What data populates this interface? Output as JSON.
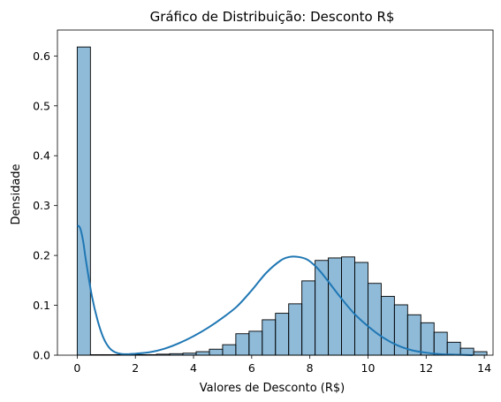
{
  "chart_data": {
    "type": "bar",
    "title": "Gráfico de Distribuição: Desconto R$",
    "xlabel": "Valores de Desconto (R$)",
    "ylabel": "Densidade",
    "xlim": [
      -0.68,
      14.3
    ],
    "ylim": [
      0,
      0.652
    ],
    "xticks": [
      "0",
      "2",
      "4",
      "6",
      "8",
      "10",
      "12",
      "14"
    ],
    "yticks": [
      "0.0",
      "0.1",
      "0.2",
      "0.3",
      "0.4",
      "0.5",
      "0.6"
    ],
    "bin_width": 0.4545,
    "bin_start": 0.0,
    "series": [
      {
        "type": "histogram",
        "color": "#1f77b4",
        "values": [
          0.618,
          0.001,
          0.001,
          0.001,
          0.001,
          0.001,
          0.002,
          0.003,
          0.004,
          0.007,
          0.012,
          0.021,
          0.043,
          0.048,
          0.071,
          0.084,
          0.103,
          0.149,
          0.19,
          0.195,
          0.197,
          0.186,
          0.144,
          0.118,
          0.101,
          0.081,
          0.065,
          0.046,
          0.026,
          0.014,
          0.007
        ]
      },
      {
        "type": "kde",
        "color": "#1f77b4",
        "x": [
          0.0,
          0.1,
          0.2,
          0.3,
          0.5,
          0.7,
          0.9,
          1.1,
          1.3,
          1.6,
          2.0,
          2.5,
          3.0,
          3.5,
          4.0,
          4.5,
          5.0,
          5.5,
          6.0,
          6.5,
          7.0,
          7.3,
          7.6,
          7.9,
          8.2,
          8.5,
          9.0,
          9.5,
          10.0,
          10.5,
          11.0,
          11.5,
          12.0,
          12.5,
          13.0,
          13.6
        ],
        "y": [
          0.26,
          0.255,
          0.23,
          0.19,
          0.12,
          0.07,
          0.035,
          0.015,
          0.006,
          0.002,
          0.003,
          0.006,
          0.013,
          0.024,
          0.038,
          0.055,
          0.075,
          0.098,
          0.13,
          0.165,
          0.19,
          0.197,
          0.197,
          0.192,
          0.178,
          0.158,
          0.12,
          0.085,
          0.058,
          0.036,
          0.02,
          0.01,
          0.005,
          0.002,
          0.001,
          0.0
        ]
      }
    ],
    "grid": false,
    "legend": "none"
  }
}
